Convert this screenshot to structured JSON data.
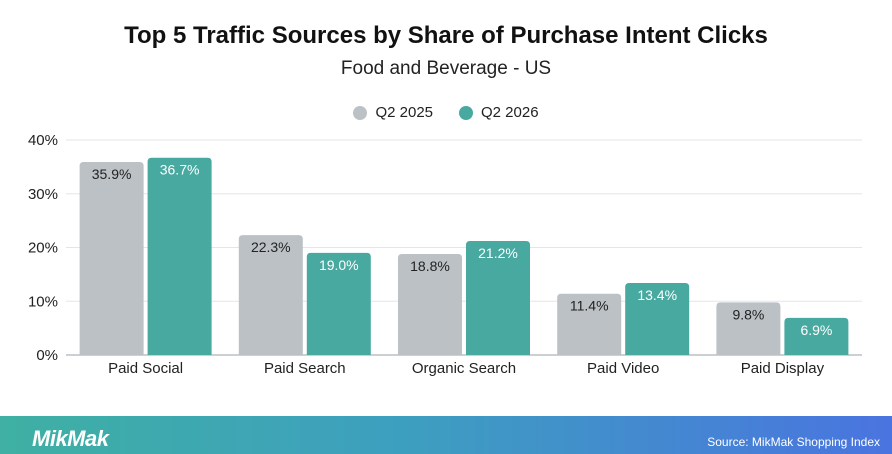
{
  "chart_data": {
    "type": "bar",
    "title": "Top 5 Traffic Sources by Share of Purchase Intent Clicks",
    "subtitle": "Food and Beverage - US",
    "categories": [
      "Paid Social",
      "Paid Search",
      "Organic Search",
      "Paid Video",
      "Paid Display"
    ],
    "series": [
      {
        "name": "Q2 2025",
        "color": "#bcc1c6",
        "values": [
          35.9,
          22.3,
          18.8,
          11.4,
          9.8
        ],
        "labels": [
          "35.9%",
          "22.3%",
          "18.8%",
          "11.4%",
          "9.8%"
        ]
      },
      {
        "name": "Q2 2026",
        "color": "#47a9a0",
        "values": [
          36.7,
          19.0,
          21.2,
          13.4,
          6.9
        ],
        "labels": [
          "36.7%",
          "19.0%",
          "21.2%",
          "13.4%",
          "6.9%"
        ]
      }
    ],
    "ylim": [
      0,
      40
    ],
    "yticks": [
      0,
      10,
      20,
      30,
      40
    ],
    "ytick_labels": [
      "0%",
      "10%",
      "20%",
      "30%",
      "40%"
    ],
    "grid": true,
    "legend": "top-center"
  },
  "footer": {
    "logo_text": "MikMak",
    "source": "Source: MikMak Shopping Index"
  }
}
